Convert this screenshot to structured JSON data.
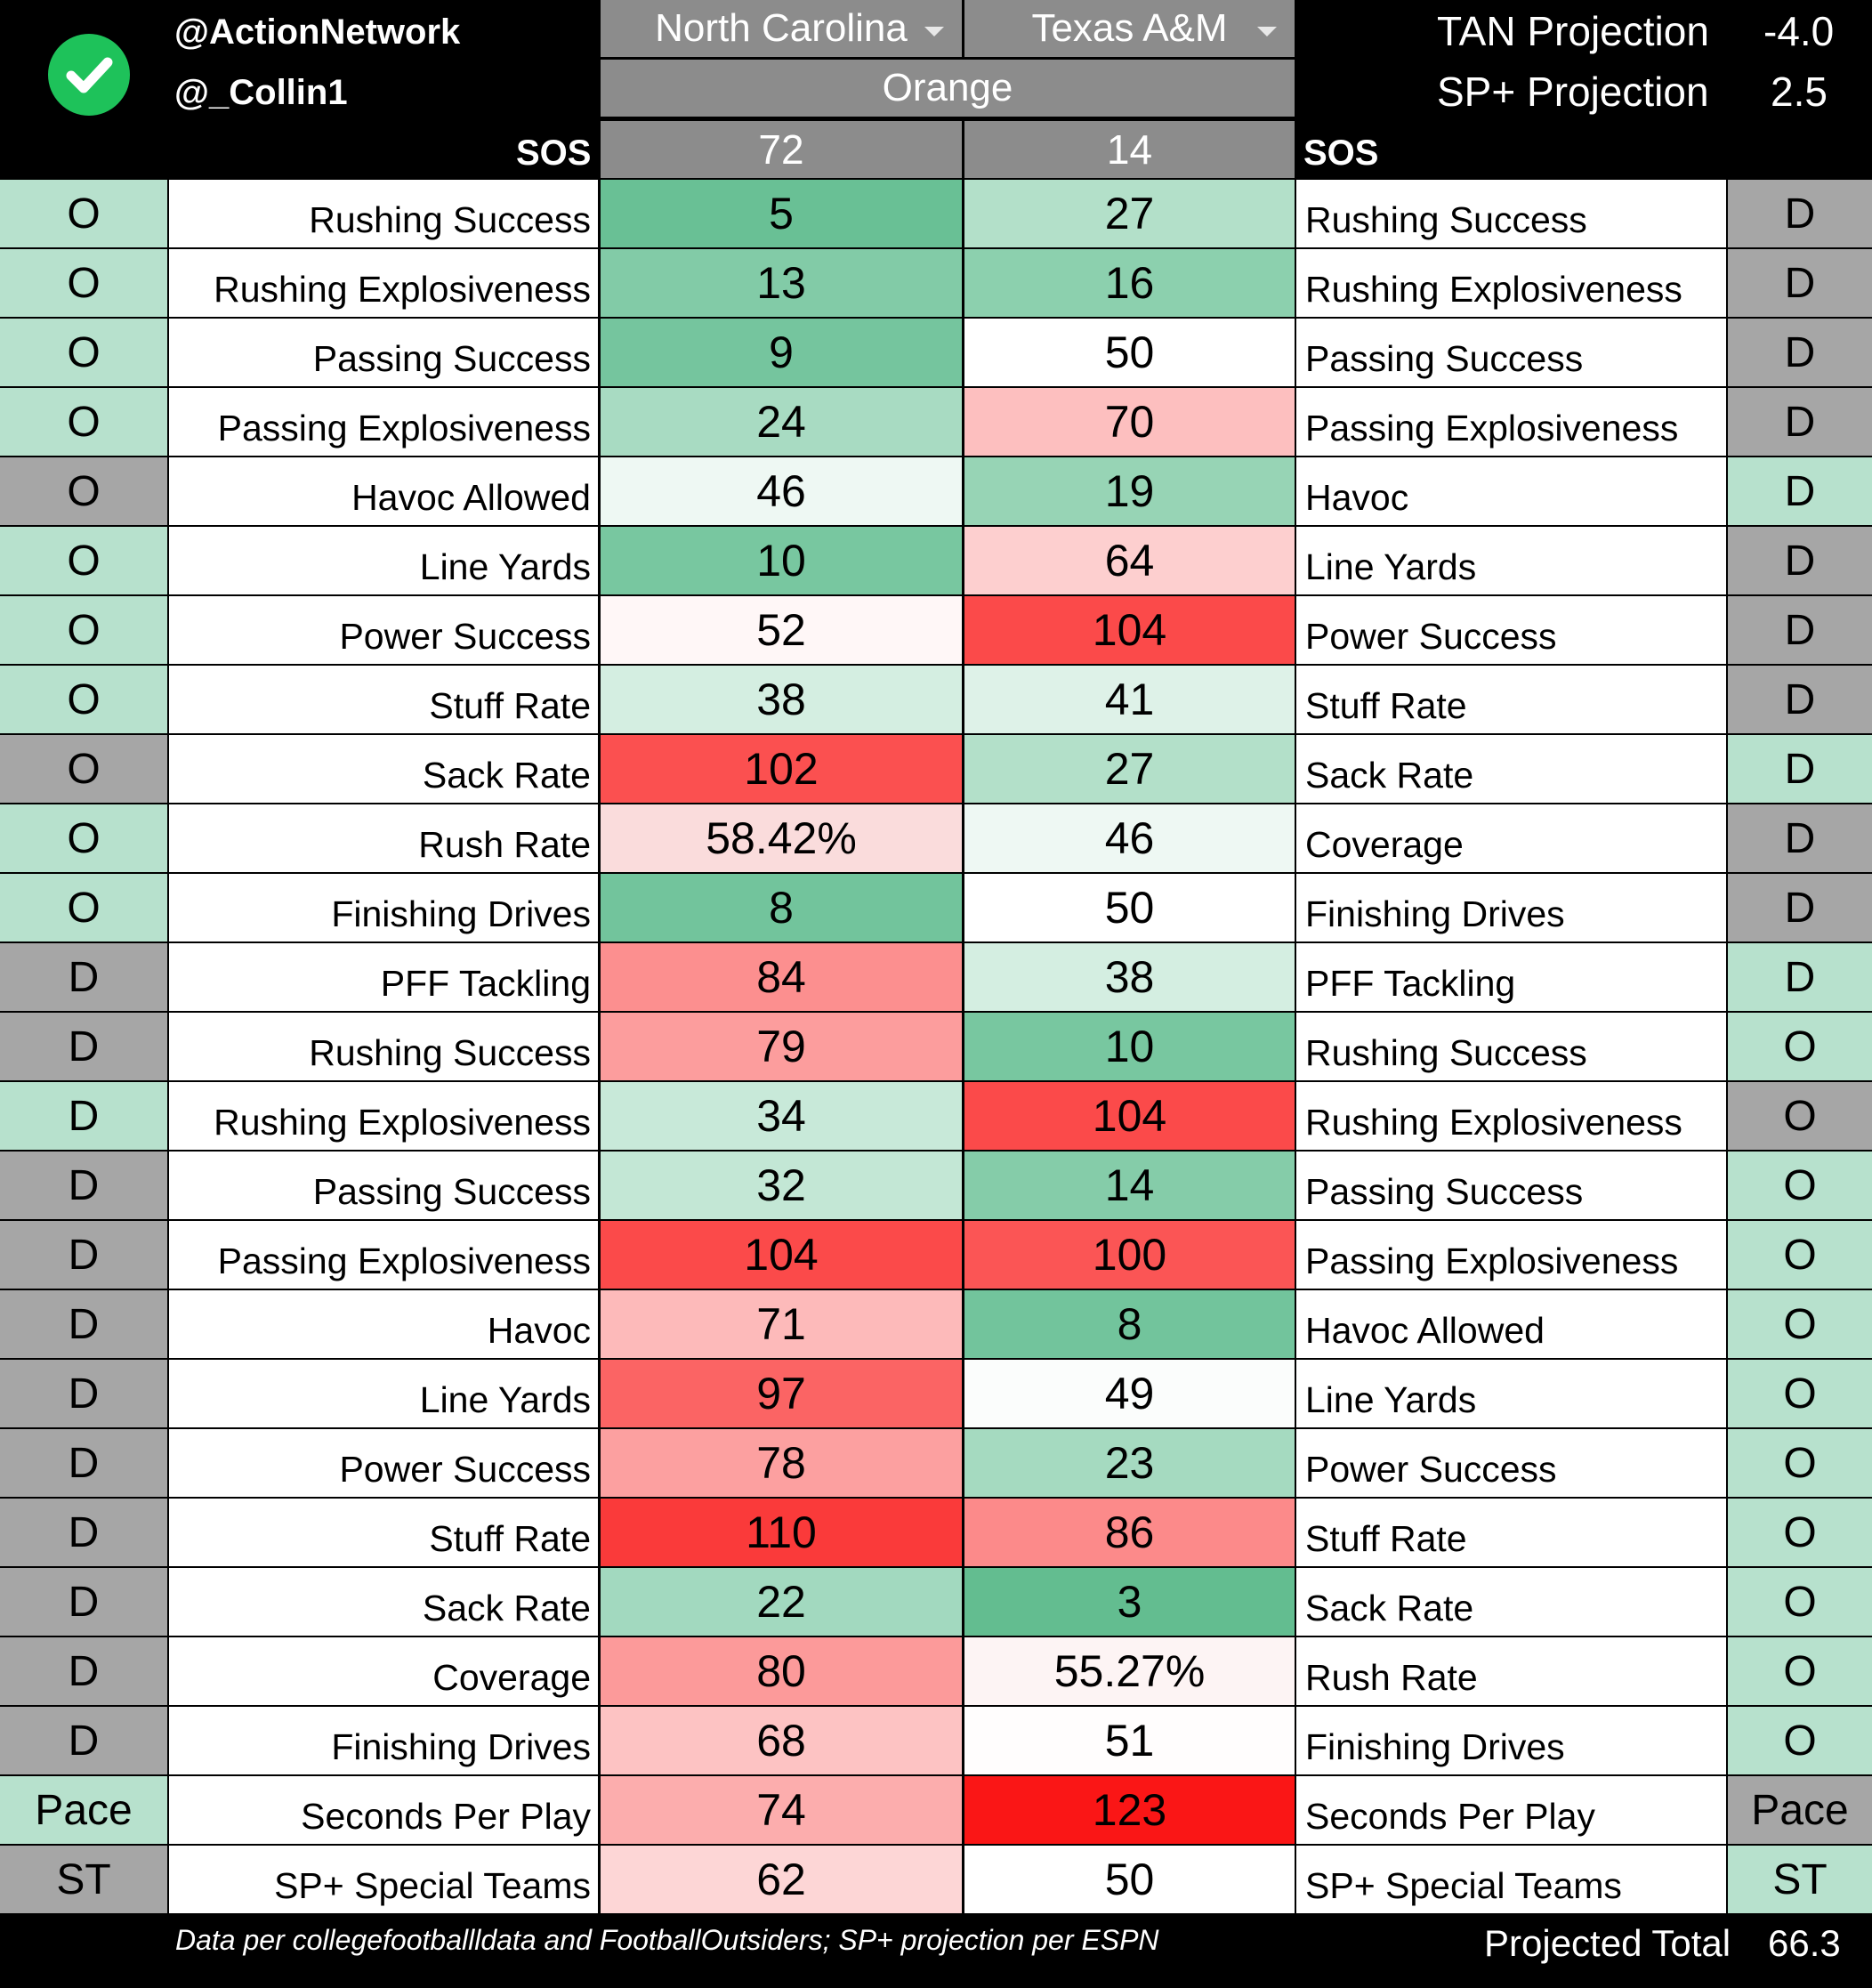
{
  "header": {
    "handle_1": "@ActionNetwork",
    "handle_2": "@_Collin1",
    "team_left": "North Carolina",
    "team_right": "Texas A&M",
    "bowl": "Orange",
    "tan_label": "TAN Projection",
    "tan_value": "-4.0",
    "sp_label": "SP+ Projection",
    "sp_value": "2.5",
    "sos_label_left": "SOS",
    "sos_label_right": "SOS",
    "sos_left": "72",
    "sos_right": "14"
  },
  "rows": [
    {
      "lf": "O",
      "ll": "Rushing Success",
      "lv": "5",
      "rv": "27",
      "rl": "Rushing Success",
      "rf": "D",
      "lfc": "#b7e1cd",
      "rfc": "#a6a6a6",
      "lvc": "#69c095",
      "rvc": "#b3e0c9"
    },
    {
      "lf": "O",
      "ll": "Rushing Explosiveness",
      "lv": "13",
      "rv": "16",
      "rl": "Rushing Explosiveness",
      "rf": "D",
      "lfc": "#b7e1cd",
      "rfc": "#a6a6a6",
      "lvc": "#82cba7",
      "rvc": "#8cd0ae"
    },
    {
      "lf": "O",
      "ll": "Passing Success",
      "lv": "9",
      "rv": "50",
      "rl": "Passing Success",
      "rf": "D",
      "lfc": "#b7e1cd",
      "rfc": "#a6a6a6",
      "lvc": "#75c59e",
      "rvc": "#ffffff"
    },
    {
      "lf": "O",
      "ll": "Passing Explosiveness",
      "lv": "24",
      "rv": "70",
      "rl": "Passing Explosiveness",
      "rf": "D",
      "lfc": "#b7e1cd",
      "rfc": "#a6a6a6",
      "lvc": "#a8dbc2",
      "rvc": "#fdbfbf"
    },
    {
      "lf": "O",
      "ll": "Havoc Allowed",
      "lv": "46",
      "rv": "19",
      "rl": "Havoc",
      "rf": "D",
      "lfc": "#a6a6a6",
      "rfc": "#b7e1cd",
      "lvc": "#eef8f3",
      "rvc": "#97d4b5"
    },
    {
      "lf": "O",
      "ll": "Line Yards",
      "lv": "10",
      "rv": "64",
      "rl": "Line Yards",
      "rf": "D",
      "lfc": "#b7e1cd",
      "rfc": "#a6a6a6",
      "lvc": "#78c7a0",
      "rvc": "#fdcfcf"
    },
    {
      "lf": "O",
      "ll": "Power Success",
      "lv": "52",
      "rv": "104",
      "rl": "Power Success",
      "rf": "D",
      "lfc": "#b7e1cd",
      "rfc": "#a6a6a6",
      "lvc": "#fff7f7",
      "rvc": "#fb4a4a"
    },
    {
      "lf": "O",
      "ll": "Stuff Rate",
      "lv": "38",
      "rv": "41",
      "rl": "Stuff Rate",
      "rf": "D",
      "lfc": "#b7e1cd",
      "rfc": "#a6a6a6",
      "lvc": "#d4eee1",
      "rvc": "#deF2e8"
    },
    {
      "lf": "O",
      "ll": "Sack Rate",
      "lv": "102",
      "rv": "27",
      "rl": "Sack Rate",
      "rf": "D",
      "lfc": "#a6a6a6",
      "rfc": "#b7e1cd",
      "lvc": "#fb5050",
      "rvc": "#b3e0c9"
    },
    {
      "lf": "O",
      "ll": "Rush Rate",
      "lv": "58.42%",
      "rv": "46",
      "rl": "Coverage",
      "rf": "D",
      "lfc": "#b7e1cd",
      "rfc": "#a6a6a6",
      "lvc": "#fadcdc",
      "rvc": "#eef8f3"
    },
    {
      "lf": "O",
      "ll": "Finishing Drives",
      "lv": "8",
      "rv": "50",
      "rl": "Finishing Drives",
      "rf": "D",
      "lfc": "#b7e1cd",
      "rfc": "#a6a6a6",
      "lvc": "#72c49c",
      "rvc": "#ffffff"
    },
    {
      "lf": "D",
      "ll": "PFF Tackling",
      "lv": "84",
      "rv": "38",
      "rl": "PFF Tackling",
      "rf": "D",
      "lfc": "#a6a6a6",
      "rfc": "#b7e1cd",
      "lvc": "#fc8f8f",
      "rvc": "#d4eee1"
    },
    {
      "lf": "D",
      "ll": "Rushing Success",
      "lv": "79",
      "rv": "10",
      "rl": "Rushing Success",
      "rf": "O",
      "lfc": "#a6a6a6",
      "rfc": "#b7e1cd",
      "lvc": "#fc9d9d",
      "rvc": "#78c7a0"
    },
    {
      "lf": "D",
      "ll": "Rushing Explosiveness",
      "lv": "34",
      "rv": "104",
      "rl": "Rushing Explosiveness",
      "rf": "O",
      "lfc": "#b7e1cd",
      "rfc": "#a6a6a6",
      "lvc": "#c8e9d9",
      "rvc": "#fb4a4a"
    },
    {
      "lf": "D",
      "ll": "Passing Success",
      "lv": "32",
      "rv": "14",
      "rl": "Passing Success",
      "rf": "O",
      "lfc": "#a6a6a6",
      "rfc": "#b7e1cd",
      "lvc": "#c3e7d5",
      "rvc": "#85cca9"
    },
    {
      "lf": "D",
      "ll": "Passing Explosiveness",
      "lv": "104",
      "rv": "100",
      "rl": "Passing Explosiveness",
      "rf": "O",
      "lfc": "#a6a6a6",
      "rfc": "#b7e1cd",
      "lvc": "#fb4a4a",
      "rvc": "#fb5555"
    },
    {
      "lf": "D",
      "ll": "Havoc",
      "lv": "71",
      "rv": "8",
      "rl": "Havoc Allowed",
      "rf": "O",
      "lfc": "#a6a6a6",
      "rfc": "#b7e1cd",
      "lvc": "#fdbaba",
      "rvc": "#72c49c"
    },
    {
      "lf": "D",
      "ll": "Line Yards",
      "lv": "97",
      "rv": "49",
      "rl": "Line Yards",
      "rf": "O",
      "lfc": "#a6a6a6",
      "rfc": "#b7e1cd",
      "lvc": "#fb6464",
      "rvc": "#fbfdfc"
    },
    {
      "lf": "D",
      "ll": "Power Success",
      "lv": "78",
      "rv": "23",
      "rl": "Power Success",
      "rf": "O",
      "lfc": "#a6a6a6",
      "rfc": "#b7e1cd",
      "lvc": "#fca0a0",
      "rvc": "#a5dac0"
    },
    {
      "lf": "D",
      "ll": "Stuff Rate",
      "lv": "110",
      "rv": "86",
      "rl": "Stuff Rate",
      "rf": "O",
      "lfc": "#a6a6a6",
      "rfc": "#b7e1cd",
      "lvc": "#fa3a3a",
      "rvc": "#fc8a8a"
    },
    {
      "lf": "D",
      "ll": "Sack Rate",
      "lv": "22",
      "rv": "3",
      "rl": "Sack Rate",
      "rf": "O",
      "lfc": "#a6a6a6",
      "rfc": "#b7e1cd",
      "lvc": "#a2d9bf",
      "rvc": "#63bd90"
    },
    {
      "lf": "D",
      "ll": "Coverage",
      "lv": "80",
      "rv": "55.27%",
      "rl": "Rush Rate",
      "rf": "O",
      "lfc": "#a6a6a6",
      "rfc": "#b7e1cd",
      "lvc": "#fc9a9a",
      "rvc": "#fdf4f4"
    },
    {
      "lf": "D",
      "ll": "Finishing Drives",
      "lv": "68",
      "rv": "51",
      "rl": "Finishing Drives",
      "rf": "O",
      "lfc": "#a6a6a6",
      "rfc": "#b7e1cd",
      "lvc": "#fdc3c3",
      "rvc": "#fffdfd"
    },
    {
      "lf": "Pace",
      "ll": "Seconds Per Play",
      "lv": "74",
      "rv": "123",
      "rl": "Seconds Per Play",
      "rf": "Pace",
      "lfc": "#b7e1cd",
      "rfc": "#a6a6a6",
      "lvc": "#fcadad",
      "rvc": "#fa1616"
    },
    {
      "lf": "ST",
      "ll": "SP+ Special Teams",
      "lv": "62",
      "rv": "50",
      "rl": "SP+ Special Teams",
      "rf": "ST",
      "lfc": "#a6a6a6",
      "rfc": "#b7e1cd",
      "lvc": "#fdd6d6",
      "rvc": "#ffffff"
    }
  ],
  "footer": {
    "note": "Data per collegefootballldata and FootballOutsiders; SP+ projection per ESPN",
    "total_label": "Projected Total",
    "total_value": "66.3"
  },
  "colors": {
    "header_bg": "#000000",
    "select_gray": "#8c8c8c",
    "logo_green": "#1ec25a"
  },
  "icons": {
    "logo": "check-circle-icon",
    "dropdown": "chevron-down-icon"
  }
}
